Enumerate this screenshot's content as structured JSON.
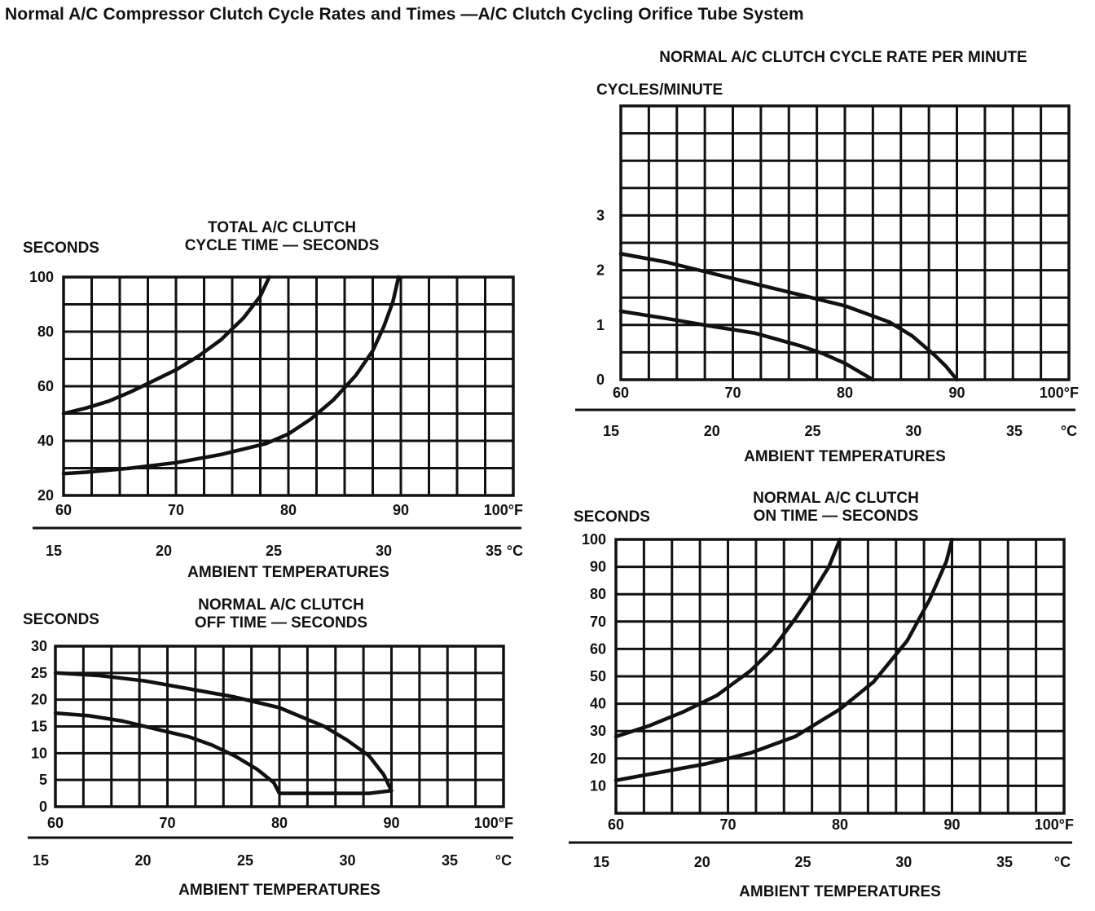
{
  "page_title": "Normal A/C Compressor Clutch Cycle Rates and Times —A/C Clutch Cycling Orifice Tube System",
  "chart_data": [
    {
      "id": "total-cycle-time",
      "type": "line",
      "title": [
        "TOTAL A/C CLUTCH",
        "CYCLE TIME — SECONDS"
      ],
      "ylabel": "SECONDS",
      "xlabel": "AMBIENT TEMPERATURES",
      "x_unit": "100°F",
      "c_unit": "°C",
      "xlim": [
        60,
        100
      ],
      "ylim": [
        20,
        100
      ],
      "grid": true,
      "x_ticks": [
        {
          "v": 60,
          "t": "60"
        },
        {
          "v": 70,
          "t": "70"
        },
        {
          "v": 80,
          "t": "80"
        },
        {
          "v": 90,
          "t": "90"
        },
        {
          "v": 100,
          "t": "100°F"
        }
      ],
      "y_ticks": [
        {
          "v": 20,
          "t": "20"
        },
        {
          "v": 40,
          "t": "40"
        },
        {
          "v": 60,
          "t": "60"
        },
        {
          "v": 80,
          "t": "80"
        },
        {
          "v": 100,
          "t": "100"
        }
      ],
      "c_ticks": [
        {
          "v": 15,
          "t": "15"
        },
        {
          "v": 20,
          "t": "20"
        },
        {
          "v": 25,
          "t": "25"
        },
        {
          "v": 30,
          "t": "30"
        },
        {
          "v": 35,
          "t": "35"
        }
      ],
      "series": [
        {
          "x": [
            60,
            62,
            64,
            66,
            68,
            70,
            72,
            74,
            76,
            77.5,
            78.3
          ],
          "y": [
            50,
            52,
            54.5,
            58,
            62,
            66,
            71,
            77,
            85,
            93,
            100
          ]
        },
        {
          "x": [
            60,
            62,
            66,
            70,
            74,
            78,
            80,
            82,
            84,
            86,
            87.5,
            88.5,
            89.3,
            89.8
          ],
          "y": [
            28,
            28.5,
            30,
            32,
            35,
            39,
            42.5,
            48,
            55,
            64,
            73,
            82,
            91,
            100
          ]
        }
      ]
    },
    {
      "id": "off-time",
      "type": "line",
      "title": [
        "NORMAL A/C CLUTCH",
        "OFF TIME — SECONDS"
      ],
      "ylabel": "SECONDS",
      "xlabel": "AMBIENT TEMPERATURES",
      "x_unit": "100°F",
      "c_unit": "°C",
      "xlim": [
        60,
        100
      ],
      "ylim": [
        0,
        30
      ],
      "grid": true,
      "x_ticks": [
        {
          "v": 60,
          "t": "60"
        },
        {
          "v": 70,
          "t": "70"
        },
        {
          "v": 80,
          "t": "80"
        },
        {
          "v": 90,
          "t": "90"
        },
        {
          "v": 100,
          "t": "100°F"
        }
      ],
      "y_ticks": [
        {
          "v": 0,
          "t": "0"
        },
        {
          "v": 5,
          "t": "5"
        },
        {
          "v": 10,
          "t": "10"
        },
        {
          "v": 15,
          "t": "15"
        },
        {
          "v": 20,
          "t": "20"
        },
        {
          "v": 25,
          "t": "25"
        },
        {
          "v": 30,
          "t": "30"
        }
      ],
      "c_ticks": [
        {
          "v": 15,
          "t": "15"
        },
        {
          "v": 20,
          "t": "20"
        },
        {
          "v": 25,
          "t": "25"
        },
        {
          "v": 30,
          "t": "30"
        },
        {
          "v": 35,
          "t": "35"
        }
      ],
      "series": [
        {
          "x": [
            60,
            64,
            68,
            72,
            76,
            80,
            84,
            86,
            88,
            89.3,
            90,
            88,
            84,
            80
          ],
          "y": [
            25,
            24.5,
            23.5,
            22,
            20.5,
            18.5,
            15,
            12.5,
            9.5,
            6,
            3,
            2.5,
            2.5,
            2.5
          ]
        },
        {
          "x": [
            60,
            63,
            66,
            69,
            72,
            74,
            76,
            78,
            79.5,
            80
          ],
          "y": [
            17.5,
            17,
            16,
            14.5,
            13,
            11.5,
            9.5,
            7,
            4.5,
            2.5
          ]
        }
      ]
    },
    {
      "id": "cycle-rate",
      "type": "line",
      "title": [
        "NORMAL A/C CLUTCH CYCLE RATE PER MINUTE"
      ],
      "ylabel": "CYCLES/MINUTE",
      "xlabel": "AMBIENT TEMPERATURES",
      "x_unit": "100°F",
      "c_unit": "°C",
      "xlim": [
        60,
        100
      ],
      "ylim": [
        0,
        5
      ],
      "grid": true,
      "grid_rows": 10,
      "x_ticks": [
        {
          "v": 60,
          "t": "60"
        },
        {
          "v": 70,
          "t": "70"
        },
        {
          "v": 80,
          "t": "80"
        },
        {
          "v": 90,
          "t": "90"
        },
        {
          "v": 100,
          "t": "100°F"
        }
      ],
      "y_ticks": [
        {
          "v": 0,
          "t": "0"
        },
        {
          "v": 1,
          "t": "1"
        },
        {
          "v": 2,
          "t": "2"
        },
        {
          "v": 3,
          "t": "3"
        }
      ],
      "c_ticks": [
        {
          "v": 15,
          "t": "15"
        },
        {
          "v": 20,
          "t": "20"
        },
        {
          "v": 25,
          "t": "25"
        },
        {
          "v": 30,
          "t": "30"
        },
        {
          "v": 35,
          "t": "35"
        }
      ],
      "series": [
        {
          "x": [
            60,
            64,
            68,
            72,
            76,
            80,
            84,
            86,
            88,
            89,
            90
          ],
          "y": [
            2.3,
            2.15,
            1.95,
            1.75,
            1.55,
            1.35,
            1.05,
            0.8,
            0.45,
            0.25,
            0
          ]
        },
        {
          "x": [
            60,
            64,
            68,
            72,
            76,
            78,
            80,
            81.5,
            82.5
          ],
          "y": [
            1.25,
            1.12,
            0.98,
            0.85,
            0.62,
            0.48,
            0.3,
            0.12,
            0
          ]
        }
      ]
    },
    {
      "id": "on-time",
      "type": "line",
      "title": [
        "NORMAL A/C CLUTCH",
        "ON TIME — SECONDS"
      ],
      "ylabel": "SECONDS",
      "xlabel": "AMBIENT TEMPERATURES",
      "x_unit": "100°F",
      "c_unit": "°C",
      "xlim": [
        60,
        100
      ],
      "ylim": [
        0,
        100
      ],
      "grid": true,
      "x_ticks": [
        {
          "v": 60,
          "t": "60"
        },
        {
          "v": 70,
          "t": "70"
        },
        {
          "v": 80,
          "t": "80"
        },
        {
          "v": 90,
          "t": "90"
        },
        {
          "v": 100,
          "t": "100°F"
        }
      ],
      "y_ticks": [
        {
          "v": 10,
          "t": "10"
        },
        {
          "v": 20,
          "t": "20"
        },
        {
          "v": 30,
          "t": "30"
        },
        {
          "v": 40,
          "t": "40"
        },
        {
          "v": 50,
          "t": "50"
        },
        {
          "v": 60,
          "t": "60"
        },
        {
          "v": 70,
          "t": "70"
        },
        {
          "v": 80,
          "t": "80"
        },
        {
          "v": 90,
          "t": "90"
        },
        {
          "v": 100,
          "t": "100"
        }
      ],
      "c_ticks": [
        {
          "v": 15,
          "t": "15"
        },
        {
          "v": 20,
          "t": "20"
        },
        {
          "v": 25,
          "t": "25"
        },
        {
          "v": 30,
          "t": "30"
        },
        {
          "v": 35,
          "t": "35"
        }
      ],
      "series": [
        {
          "x": [
            60,
            63,
            66,
            69,
            72,
            74,
            76,
            77.5,
            79,
            80
          ],
          "y": [
            28,
            32,
            37,
            43,
            52,
            60,
            71,
            80,
            90,
            100
          ]
        },
        {
          "x": [
            60,
            64,
            68,
            72,
            76,
            80,
            83,
            86,
            88,
            89.5,
            90
          ],
          "y": [
            12,
            15,
            18,
            22,
            28,
            38,
            48,
            63,
            78,
            92,
            100
          ]
        }
      ]
    }
  ]
}
